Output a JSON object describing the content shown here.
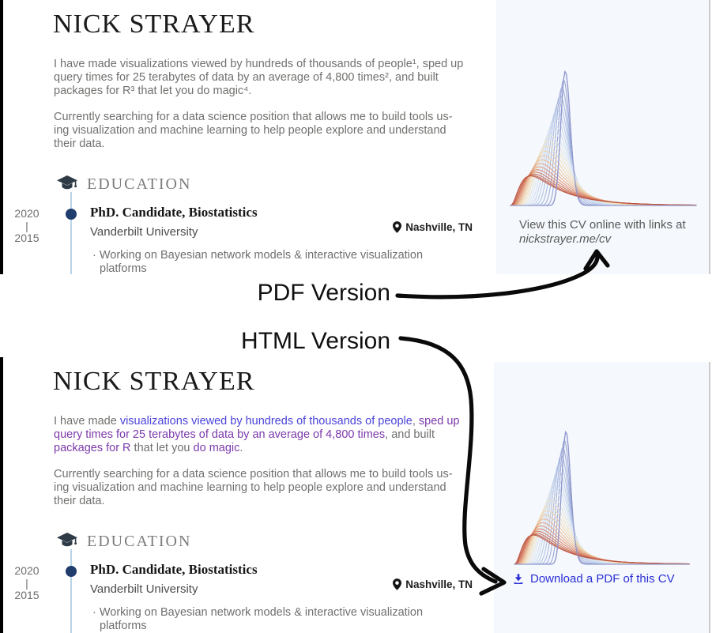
{
  "figure": {
    "pdf_label": "PDF Version",
    "html_label": "HTML Version"
  },
  "link_colors": {
    "blue": "#4a43d9",
    "purple": "#7c39ab",
    "download": "#2b2fd6"
  },
  "icons": {
    "education": "graduation-cap-icon",
    "location": "location-pin-icon",
    "download": "download-icon"
  },
  "cv": {
    "name": "NICK STRAYER",
    "intro_pdf_lines": [
      "I have made visualizations viewed by hundreds of thousands of people¹, sped up",
      "query times for 25 terabytes of data by an average of 4,800 times², and built",
      "packages for R³ that let you do magic⁴."
    ],
    "intro_html_lines": [
      [
        {
          "t": "I have made ",
          "c": "plain"
        },
        {
          "t": "visualizations viewed by hundreds of thousands of people",
          "c": "blue"
        },
        {
          "t": ", ",
          "c": "plain"
        },
        {
          "t": "sped up",
          "c": "purple"
        }
      ],
      [
        {
          "t": "query times for 25 terabytes of data by an average of 4,800 times",
          "c": "purple"
        },
        {
          "t": ", and built",
          "c": "plain"
        }
      ],
      [
        {
          "t": "packages for R",
          "c": "purple"
        },
        {
          "t": " that let you ",
          "c": "plain"
        },
        {
          "t": "do magic",
          "c": "purple"
        },
        {
          "t": ".",
          "c": "plain"
        }
      ]
    ],
    "paragraph2_lines": [
      "Currently searching for a data science position that allows me to build tools us-",
      "ing visualization and machine learning to help people explore and understand",
      "their data."
    ],
    "education": {
      "heading": "EDUCATION",
      "years": [
        "2020",
        "|",
        "2015"
      ],
      "degree": "PhD. Candidate, Biostatistics",
      "school": "Vanderbilt University",
      "location": "Nashville, TN",
      "bullet_lines": [
        "· Working on Bayesian network models & interactive visualization",
        "platforms"
      ]
    }
  },
  "pdf_sidebar": {
    "caption_line1": "View this CV online with links at",
    "caption_line2": "nickstrayer.me/cv"
  },
  "html_sidebar": {
    "download_label": "Download a PDF of this CV"
  },
  "chart": {
    "type": "area",
    "description": "Decorative stack of overlapping density curves morphing from a tall narrow periwinkle-blue peak to a short wide rust-red curve with a long right tail",
    "n_curves": 22,
    "palette": [
      "#8d96cc",
      "#9fb0dc",
      "#bccde8",
      "#dbe6f2",
      "#f0e2c1",
      "#edc79d",
      "#e29c7d",
      "#d2775c",
      "#bc5440"
    ]
  }
}
